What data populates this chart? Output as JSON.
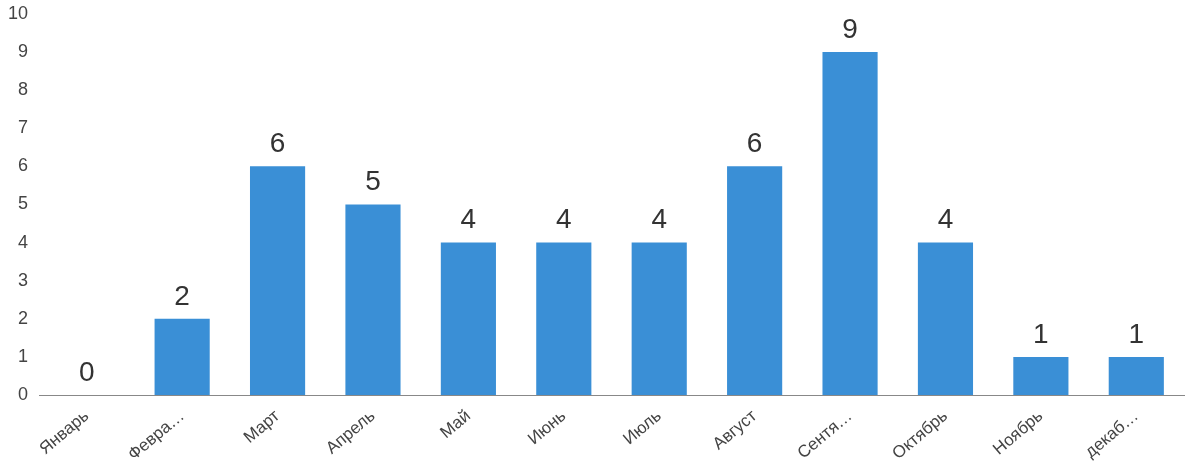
{
  "chart_data": {
    "type": "bar",
    "categories": [
      "Январь",
      "Февра…",
      "Март",
      "Апрель",
      "Май",
      "Июнь",
      "Июль",
      "Август",
      "Сентя…",
      "Октябрь",
      "Ноябрь",
      "декаб…"
    ],
    "values": [
      0,
      2,
      6,
      5,
      4,
      4,
      4,
      6,
      9,
      4,
      1,
      1
    ],
    "color": "#3a8fd6",
    "ylim": [
      0,
      10
    ],
    "yticks": [
      0,
      1,
      2,
      3,
      4,
      5,
      6,
      7,
      8,
      9,
      10
    ],
    "data_labels": true
  }
}
